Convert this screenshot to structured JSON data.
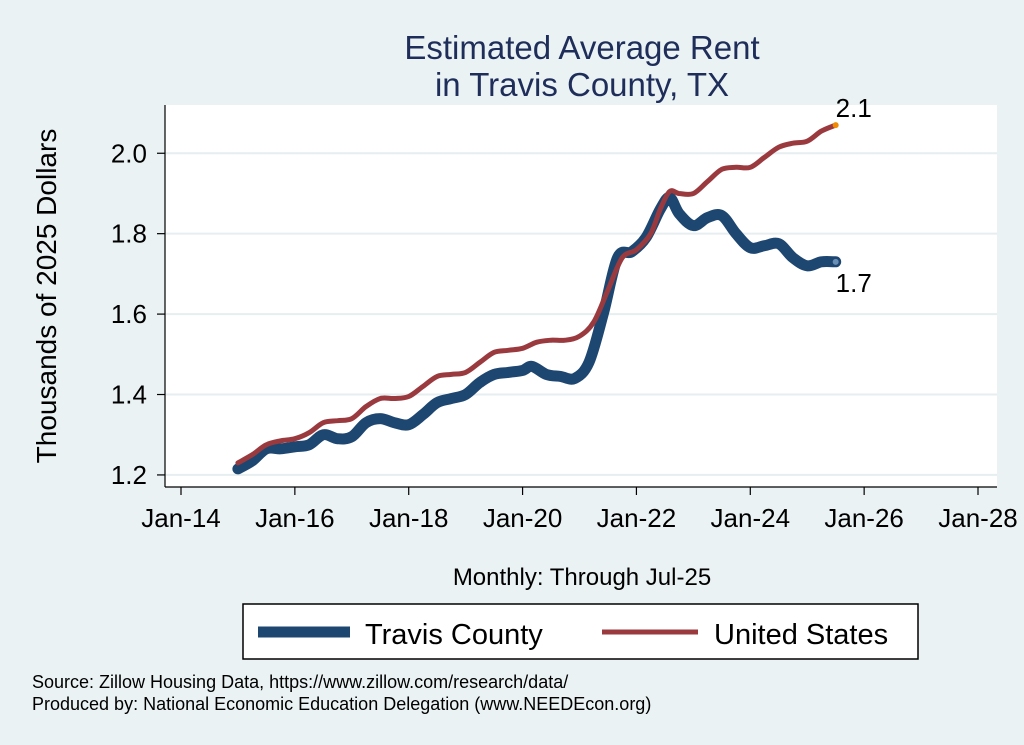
{
  "chart_data": {
    "type": "line",
    "title": [
      "Estimated Average Rent",
      "in Travis County, TX"
    ],
    "xlabel": "Monthly: Through Jul-25",
    "ylabel": "Thousands of 2025 Dollars",
    "x_ticks": [
      "Jan-14",
      "Jan-16",
      "Jan-18",
      "Jan-20",
      "Jan-22",
      "Jan-24",
      "Jan-26",
      "Jan-28"
    ],
    "y_ticks": [
      "1.2",
      "1.4",
      "1.6",
      "1.8",
      "2.0"
    ],
    "xlim": [
      "2014-01",
      "2028-01"
    ],
    "ylim": [
      1.17,
      2.12
    ],
    "grid": true,
    "legend_position": "bottom",
    "series": [
      {
        "name": "Travis County",
        "color": "#1d4670",
        "end_label": "1.7",
        "points": [
          [
            "2015-01",
            1.215
          ],
          [
            "2015-04",
            1.235
          ],
          [
            "2015-07",
            1.265
          ],
          [
            "2015-10",
            1.265
          ],
          [
            "2016-01",
            1.27
          ],
          [
            "2016-04",
            1.275
          ],
          [
            "2016-07",
            1.3
          ],
          [
            "2016-10",
            1.29
          ],
          [
            "2017-01",
            1.295
          ],
          [
            "2017-04",
            1.33
          ],
          [
            "2017-07",
            1.34
          ],
          [
            "2017-10",
            1.33
          ],
          [
            "2018-01",
            1.325
          ],
          [
            "2018-04",
            1.35
          ],
          [
            "2018-07",
            1.38
          ],
          [
            "2018-10",
            1.39
          ],
          [
            "2019-01",
            1.4
          ],
          [
            "2019-04",
            1.43
          ],
          [
            "2019-07",
            1.45
          ],
          [
            "2019-10",
            1.455
          ],
          [
            "2020-01",
            1.46
          ],
          [
            "2020-03",
            1.47
          ],
          [
            "2020-06",
            1.45
          ],
          [
            "2020-09",
            1.445
          ],
          [
            "2020-12",
            1.44
          ],
          [
            "2021-03",
            1.48
          ],
          [
            "2021-06",
            1.6
          ],
          [
            "2021-09",
            1.74
          ],
          [
            "2021-12",
            1.755
          ],
          [
            "2022-03",
            1.79
          ],
          [
            "2022-06",
            1.86
          ],
          [
            "2022-08",
            1.89
          ],
          [
            "2022-10",
            1.85
          ],
          [
            "2023-01",
            1.82
          ],
          [
            "2023-04",
            1.84
          ],
          [
            "2023-07",
            1.845
          ],
          [
            "2023-10",
            1.8
          ],
          [
            "2024-01",
            1.765
          ],
          [
            "2024-04",
            1.77
          ],
          [
            "2024-07",
            1.775
          ],
          [
            "2024-10",
            1.74
          ],
          [
            "2025-01",
            1.72
          ],
          [
            "2025-04",
            1.73
          ],
          [
            "2025-07",
            1.73
          ]
        ]
      },
      {
        "name": "United States",
        "color": "#9a3a3f",
        "end_label": "2.1",
        "points": [
          [
            "2015-01",
            1.23
          ],
          [
            "2015-04",
            1.25
          ],
          [
            "2015-07",
            1.275
          ],
          [
            "2015-10",
            1.285
          ],
          [
            "2016-01",
            1.29
          ],
          [
            "2016-04",
            1.305
          ],
          [
            "2016-07",
            1.33
          ],
          [
            "2016-10",
            1.335
          ],
          [
            "2017-01",
            1.34
          ],
          [
            "2017-04",
            1.37
          ],
          [
            "2017-07",
            1.39
          ],
          [
            "2017-10",
            1.39
          ],
          [
            "2018-01",
            1.395
          ],
          [
            "2018-04",
            1.42
          ],
          [
            "2018-07",
            1.445
          ],
          [
            "2018-10",
            1.45
          ],
          [
            "2019-01",
            1.455
          ],
          [
            "2019-04",
            1.48
          ],
          [
            "2019-07",
            1.505
          ],
          [
            "2019-10",
            1.51
          ],
          [
            "2020-01",
            1.515
          ],
          [
            "2020-04",
            1.53
          ],
          [
            "2020-07",
            1.535
          ],
          [
            "2020-10",
            1.535
          ],
          [
            "2021-01",
            1.545
          ],
          [
            "2021-04",
            1.58
          ],
          [
            "2021-07",
            1.66
          ],
          [
            "2021-10",
            1.74
          ],
          [
            "2022-01",
            1.76
          ],
          [
            "2022-04",
            1.8
          ],
          [
            "2022-06",
            1.86
          ],
          [
            "2022-08",
            1.905
          ],
          [
            "2022-10",
            1.9
          ],
          [
            "2023-01",
            1.9
          ],
          [
            "2023-04",
            1.93
          ],
          [
            "2023-07",
            1.96
          ],
          [
            "2023-10",
            1.965
          ],
          [
            "2024-01",
            1.965
          ],
          [
            "2024-04",
            1.99
          ],
          [
            "2024-07",
            2.015
          ],
          [
            "2024-10",
            2.025
          ],
          [
            "2025-01",
            2.03
          ],
          [
            "2025-04",
            2.055
          ],
          [
            "2025-07",
            2.07
          ]
        ]
      }
    ]
  },
  "footer": {
    "source": "Source: Zillow Housing Data, https://www.zillow.com/research/data/",
    "produced": "Produced by: National Economic Education Delegation (www.NEEDEcon.org)"
  }
}
